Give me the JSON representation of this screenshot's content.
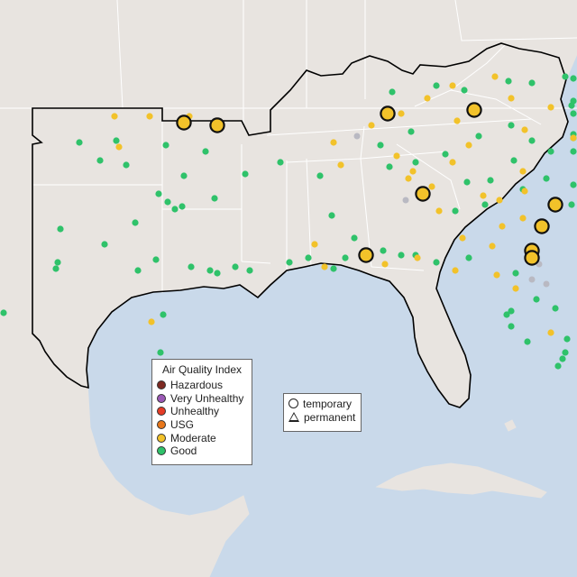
{
  "colors": {
    "ocean": "#c9d9ea",
    "land": "#e8e4e0",
    "state_border": "#ffffff",
    "region_outline": "#000000",
    "unknown_monitor": "#b9b9c2"
  },
  "legend_aqi": {
    "title": "Air Quality Index",
    "items": [
      {
        "label": "Hazardous",
        "color": "#7e2a22"
      },
      {
        "label": "Very Unhealthy",
        "color": "#9b59b6"
      },
      {
        "label": "Unhealthy",
        "color": "#e53c26"
      },
      {
        "label": "USG",
        "color": "#e8771b"
      },
      {
        "label": "Moderate",
        "color": "#f2c22a"
      },
      {
        "label": "Good",
        "color": "#2fc26a"
      }
    ]
  },
  "legend_type": {
    "items": [
      {
        "label": "temporary",
        "shape": "circle"
      },
      {
        "label": "permanent",
        "shape": "triangle"
      }
    ]
  },
  "monitors": {
    "temporary_moderate": [
      {
        "lon": -96.5,
        "lat": 36.5
      },
      {
        "lon": -95.1,
        "lat": 36.4
      },
      {
        "lon": -87.8,
        "lat": 36.9
      },
      {
        "lon": -84.1,
        "lat": 37.1
      },
      {
        "lon": -86.3,
        "lat": 33.3
      },
      {
        "lon": -88.7,
        "lat": 30.5
      },
      {
        "lon": -80.6,
        "lat": 32.8
      },
      {
        "lon": -81.2,
        "lat": 31.8
      },
      {
        "lon": -81.6,
        "lat": 30.7
      },
      {
        "lon": -81.6,
        "lat": 30.4
      }
    ],
    "good": [
      {
        "lon": -101.0,
        "lat": 35.6
      },
      {
        "lon": -99.4,
        "lat": 35.7
      },
      {
        "lon": -97.3,
        "lat": 35.5
      },
      {
        "lon": -95.6,
        "lat": 35.2
      },
      {
        "lon": -100.1,
        "lat": 34.8
      },
      {
        "lon": -99.0,
        "lat": 34.6
      },
      {
        "lon": -96.5,
        "lat": 34.1
      },
      {
        "lon": -97.6,
        "lat": 33.3
      },
      {
        "lon": -97.2,
        "lat": 32.9
      },
      {
        "lon": -96.9,
        "lat": 32.6
      },
      {
        "lon": -96.6,
        "lat": 32.7
      },
      {
        "lon": -95.2,
        "lat": 33.1
      },
      {
        "lon": -98.6,
        "lat": 32.0
      },
      {
        "lon": -101.8,
        "lat": 31.7
      },
      {
        "lon": -99.9,
        "lat": 31.0
      },
      {
        "lon": -101.9,
        "lat": 30.2
      },
      {
        "lon": -102.0,
        "lat": 29.9
      },
      {
        "lon": -98.5,
        "lat": 29.8
      },
      {
        "lon": -97.7,
        "lat": 30.3
      },
      {
        "lon": -96.2,
        "lat": 30.0
      },
      {
        "lon": -95.4,
        "lat": 29.8
      },
      {
        "lon": -95.1,
        "lat": 29.7
      },
      {
        "lon": -94.3,
        "lat": 30.0
      },
      {
        "lon": -93.7,
        "lat": 29.8
      },
      {
        "lon": -97.4,
        "lat": 27.8
      },
      {
        "lon": -97.5,
        "lat": 26.1
      },
      {
        "lon": -104.3,
        "lat": 27.9
      },
      {
        "lon": -92.0,
        "lat": 30.2
      },
      {
        "lon": -91.2,
        "lat": 30.4
      },
      {
        "lon": -90.1,
        "lat": 29.9
      },
      {
        "lon": -89.6,
        "lat": 30.4
      },
      {
        "lon": -92.4,
        "lat": 34.7
      },
      {
        "lon": -93.9,
        "lat": 34.2
      },
      {
        "lon": -90.7,
        "lat": 34.1
      },
      {
        "lon": -90.2,
        "lat": 32.3
      },
      {
        "lon": -89.2,
        "lat": 31.3
      },
      {
        "lon": -88.1,
        "lat": 35.5
      },
      {
        "lon": -86.8,
        "lat": 36.1
      },
      {
        "lon": -85.3,
        "lat": 35.1
      },
      {
        "lon": -83.9,
        "lat": 35.9
      },
      {
        "lon": -82.5,
        "lat": 36.4
      },
      {
        "lon": -81.6,
        "lat": 35.7
      },
      {
        "lon": -80.8,
        "lat": 35.2
      },
      {
        "lon": -79.0,
        "lat": 36.0
      },
      {
        "lon": -78.6,
        "lat": 35.8
      },
      {
        "lon": -77.0,
        "lat": 35.2
      },
      {
        "lon": -77.5,
        "lat": 37.5
      },
      {
        "lon": -76.3,
        "lat": 36.9
      },
      {
        "lon": -79.9,
        "lat": 37.3
      },
      {
        "lon": -78.3,
        "lat": 38.5
      },
      {
        "lon": -80.2,
        "lat": 38.6
      },
      {
        "lon": -81.6,
        "lat": 38.3
      },
      {
        "lon": -82.6,
        "lat": 38.4
      },
      {
        "lon": -84.5,
        "lat": 38.0
      },
      {
        "lon": -85.7,
        "lat": 38.2
      },
      {
        "lon": -87.6,
        "lat": 37.9
      },
      {
        "lon": -86.6,
        "lat": 34.7
      },
      {
        "lon": -87.7,
        "lat": 34.5
      },
      {
        "lon": -84.4,
        "lat": 33.8
      },
      {
        "lon": -83.4,
        "lat": 33.9
      },
      {
        "lon": -82.0,
        "lat": 33.5
      },
      {
        "lon": -83.6,
        "lat": 32.8
      },
      {
        "lon": -84.9,
        "lat": 32.5
      },
      {
        "lon": -82.4,
        "lat": 34.8
      },
      {
        "lon": -81.0,
        "lat": 34.0
      },
      {
        "lon": -79.9,
        "lat": 32.8
      },
      {
        "lon": -78.9,
        "lat": 33.7
      },
      {
        "lon": -84.3,
        "lat": 30.4
      },
      {
        "lon": -82.3,
        "lat": 29.7
      },
      {
        "lon": -81.4,
        "lat": 28.5
      },
      {
        "lon": -80.6,
        "lat": 28.1
      },
      {
        "lon": -82.5,
        "lat": 28.0
      },
      {
        "lon": -82.7,
        "lat": 27.8
      },
      {
        "lon": -82.5,
        "lat": 27.3
      },
      {
        "lon": -81.8,
        "lat": 26.6
      },
      {
        "lon": -80.1,
        "lat": 26.7
      },
      {
        "lon": -80.2,
        "lat": 26.1
      },
      {
        "lon": -80.3,
        "lat": 25.8
      },
      {
        "lon": -80.5,
        "lat": 25.5
      },
      {
        "lon": -86.6,
        "lat": 30.5
      },
      {
        "lon": -85.7,
        "lat": 30.2
      },
      {
        "lon": -88.0,
        "lat": 30.7
      },
      {
        "lon": -87.2,
        "lat": 30.5
      }
    ],
    "moderate": [
      {
        "lon": -99.5,
        "lat": 36.8
      },
      {
        "lon": -98.0,
        "lat": 36.8
      },
      {
        "lon": -96.3,
        "lat": 36.8
      },
      {
        "lon": -99.3,
        "lat": 35.4
      },
      {
        "lon": -90.1,
        "lat": 35.6
      },
      {
        "lon": -89.8,
        "lat": 34.6
      },
      {
        "lon": -87.4,
        "lat": 35.0
      },
      {
        "lon": -86.7,
        "lat": 34.3
      },
      {
        "lon": -85.0,
        "lat": 34.7
      },
      {
        "lon": -83.7,
        "lat": 33.2
      },
      {
        "lon": -83.0,
        "lat": 33.0
      },
      {
        "lon": -81.9,
        "lat": 33.4
      },
      {
        "lon": -82.9,
        "lat": 31.8
      },
      {
        "lon": -84.6,
        "lat": 31.3
      },
      {
        "lon": -83.3,
        "lat": 30.9
      },
      {
        "lon": -85.6,
        "lat": 32.5
      },
      {
        "lon": -85.9,
        "lat": 33.6
      },
      {
        "lon": -86.9,
        "lat": 34.0
      },
      {
        "lon": -88.5,
        "lat": 36.4
      },
      {
        "lon": -87.2,
        "lat": 36.9
      },
      {
        "lon": -86.1,
        "lat": 37.6
      },
      {
        "lon": -85.0,
        "lat": 38.2
      },
      {
        "lon": -83.2,
        "lat": 38.6
      },
      {
        "lon": -82.5,
        "lat": 37.6
      },
      {
        "lon": -80.8,
        "lat": 37.2
      },
      {
        "lon": -81.9,
        "lat": 36.2
      },
      {
        "lon": -79.6,
        "lat": 35.8
      },
      {
        "lon": -82.0,
        "lat": 34.3
      },
      {
        "lon": -84.3,
        "lat": 35.5
      },
      {
        "lon": -84.8,
        "lat": 36.6
      },
      {
        "lon": -90.9,
        "lat": 31.0
      },
      {
        "lon": -87.9,
        "lat": 30.1
      },
      {
        "lon": -86.5,
        "lat": 30.4
      },
      {
        "lon": -84.9,
        "lat": 29.8
      },
      {
        "lon": -83.1,
        "lat": 29.6
      },
      {
        "lon": -82.3,
        "lat": 29.0
      },
      {
        "lon": -80.8,
        "lat": 27.0
      },
      {
        "lon": -82.0,
        "lat": 32.2
      },
      {
        "lon": -97.9,
        "lat": 27.5
      },
      {
        "lon": -90.5,
        "lat": 30.0
      }
    ],
    "unknown": [
      {
        "lon": -89.1,
        "lat": 35.9
      },
      {
        "lon": -87.0,
        "lat": 33.0
      },
      {
        "lon": -81.3,
        "lat": 30.1
      },
      {
        "lon": -81.0,
        "lat": 29.2
      },
      {
        "lon": -81.6,
        "lat": 29.4
      }
    ]
  }
}
